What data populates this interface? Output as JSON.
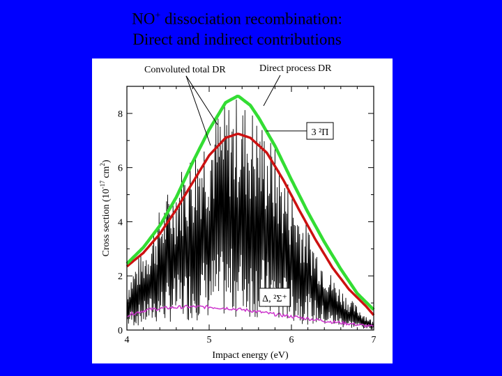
{
  "slide": {
    "title_line1_pre": "NO",
    "title_line1_sup": "+",
    "title_line1_post": " dissociation recombination:",
    "title_line2": "Direct and indirect contributions"
  },
  "colors": {
    "background": "#0000ff",
    "convoluted_total": "#33dd33",
    "direct_process": "#cc1111",
    "resonances": "#000000",
    "delta_sigma_state": "#cc33cc"
  },
  "chart_data": {
    "type": "line",
    "title": "",
    "xlabel": "Impact energy (eV)",
    "ylabel_main": "Cross section (10",
    "ylabel_exp": "-17",
    "ylabel_unit": " cm",
    "ylabel_unit_exp": "2",
    "ylabel_close": ")",
    "xlim": [
      4,
      7
    ],
    "ylim": [
      0,
      9
    ],
    "xticks": [
      4,
      5,
      6,
      7
    ],
    "yticks": [
      0,
      2,
      4,
      6,
      8
    ],
    "grid": false,
    "annotations": {
      "convoluted": "Convoluted total DR",
      "direct": "Direct process DR",
      "state_3pi": "3 ²Π",
      "state_delta": "Δ, ²Σ⁺"
    },
    "series": [
      {
        "key": "convoluted",
        "x": [
          4.0,
          4.2,
          4.4,
          4.6,
          4.8,
          5.0,
          5.2,
          5.35,
          5.5,
          5.6,
          5.8,
          6.0,
          6.2,
          6.4,
          6.6,
          6.8,
          7.0
        ],
        "y": [
          2.45,
          3.05,
          3.85,
          4.9,
          6.2,
          7.4,
          8.4,
          8.65,
          8.3,
          7.85,
          6.8,
          5.55,
          4.35,
          3.25,
          2.25,
          1.35,
          0.75
        ]
      },
      {
        "key": "direct",
        "x": [
          4.0,
          4.2,
          4.4,
          4.6,
          4.8,
          5.0,
          5.2,
          5.35,
          5.5,
          5.7,
          5.9,
          6.1,
          6.3,
          6.5,
          6.7,
          6.9,
          7.0
        ],
        "y": [
          2.35,
          2.85,
          3.55,
          4.45,
          5.45,
          6.45,
          7.1,
          7.25,
          7.1,
          6.55,
          5.55,
          4.4,
          3.3,
          2.3,
          1.5,
          0.9,
          0.55
        ]
      },
      {
        "key": "resonances",
        "x": [
          4.0,
          4.1,
          4.2,
          4.3,
          4.4,
          4.5,
          4.6,
          4.7,
          4.8,
          4.9,
          5.0,
          5.1,
          5.2,
          5.3,
          5.4,
          5.5,
          5.6,
          5.7,
          5.8,
          5.9,
          6.0,
          6.1,
          6.2,
          6.3,
          6.4,
          6.5,
          6.6,
          6.7,
          6.8,
          6.9,
          7.0
        ],
        "y_envelope": [
          1.8,
          2.5,
          3.0,
          3.7,
          4.5,
          5.2,
          5.8,
          6.3,
          6.8,
          7.4,
          7.8,
          8.2,
          8.5,
          8.7,
          8.6,
          8.4,
          8.0,
          7.5,
          6.8,
          6.0,
          5.4,
          4.6,
          3.9,
          3.2,
          2.6,
          2.0,
          1.6,
          1.2,
          0.9,
          0.6,
          0.3
        ]
      },
      {
        "key": "delta_sigma",
        "x": [
          4.0,
          4.25,
          4.5,
          4.75,
          5.0,
          5.25,
          5.5,
          5.75,
          6.0,
          6.25,
          6.5,
          6.75,
          7.0
        ],
        "y": [
          0.55,
          0.75,
          0.82,
          0.86,
          0.85,
          0.8,
          0.72,
          0.6,
          0.5,
          0.4,
          0.3,
          0.22,
          0.12
        ]
      }
    ]
  }
}
